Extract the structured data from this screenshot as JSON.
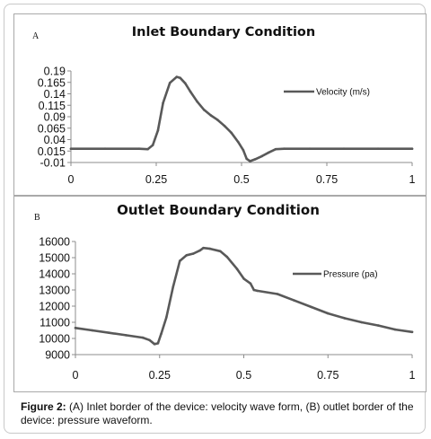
{
  "chart_data": [
    {
      "type": "line",
      "panel_label": "A",
      "title": "Inlet Boundary Condition",
      "xlabel": "",
      "ylabel": "",
      "xlim": [
        0,
        1
      ],
      "ylim": [
        -0.01,
        0.19
      ],
      "xticks": [
        "0",
        "0.25",
        "0.5",
        "0.75",
        "1"
      ],
      "yticks": [
        "0.19",
        "0.165",
        "0.14",
        "0.115",
        "0.09",
        "0.065",
        "0.04",
        "0.015",
        "-0.01"
      ],
      "legend_position": "right",
      "grid": false,
      "series": [
        {
          "name": "Velocity (m/s)",
          "color": "#595959",
          "x": [
            0,
            0.1,
            0.2,
            0.225,
            0.24,
            0.255,
            0.27,
            0.29,
            0.31,
            0.32,
            0.335,
            0.35,
            0.37,
            0.39,
            0.41,
            0.43,
            0.45,
            0.47,
            0.49,
            0.505,
            0.515,
            0.525,
            0.54,
            0.56,
            0.58,
            0.6,
            0.625,
            0.7,
            0.8,
            0.9,
            1.0
          ],
          "y": [
            0.02,
            0.02,
            0.02,
            0.019,
            0.028,
            0.06,
            0.12,
            0.164,
            0.177,
            0.175,
            0.163,
            0.145,
            0.123,
            0.105,
            0.093,
            0.083,
            0.07,
            0.055,
            0.035,
            0.017,
            -0.002,
            -0.007,
            -0.003,
            0.004,
            0.012,
            0.019,
            0.02,
            0.02,
            0.02,
            0.02,
            0.02
          ]
        }
      ]
    },
    {
      "type": "line",
      "panel_label": "B",
      "title": "Outlet Boundary Condition",
      "xlabel": "",
      "ylabel": "",
      "xlim": [
        0,
        1
      ],
      "ylim": [
        9000,
        16000
      ],
      "xticks": [
        "0",
        "0.25",
        "0.5",
        "0.75",
        "1"
      ],
      "yticks": [
        "16000",
        "15000",
        "14000",
        "13000",
        "12000",
        "11000",
        "10000",
        "9000"
      ],
      "legend_position": "right",
      "grid": false,
      "series": [
        {
          "name": "Pressure (pa)",
          "color": "#595959",
          "x": [
            0,
            0.05,
            0.1,
            0.15,
            0.2,
            0.22,
            0.235,
            0.245,
            0.255,
            0.27,
            0.29,
            0.31,
            0.33,
            0.35,
            0.37,
            0.38,
            0.4,
            0.43,
            0.45,
            0.48,
            0.5,
            0.52,
            0.53,
            0.54,
            0.6,
            0.65,
            0.7,
            0.75,
            0.8,
            0.85,
            0.9,
            0.95,
            1.0
          ],
          "y": [
            10650,
            10500,
            10350,
            10200,
            10050,
            9900,
            9650,
            9700,
            10300,
            11300,
            13200,
            14800,
            15150,
            15250,
            15450,
            15600,
            15550,
            15400,
            15050,
            14300,
            13700,
            13400,
            13000,
            12950,
            12750,
            12350,
            11950,
            11550,
            11250,
            11000,
            10800,
            10550,
            10400
          ]
        }
      ]
    }
  ],
  "caption": {
    "label": "Figure 2:",
    "text": " (A) Inlet border of the device: velocity wave form, (B) outlet border of the device: pressure waveform."
  }
}
